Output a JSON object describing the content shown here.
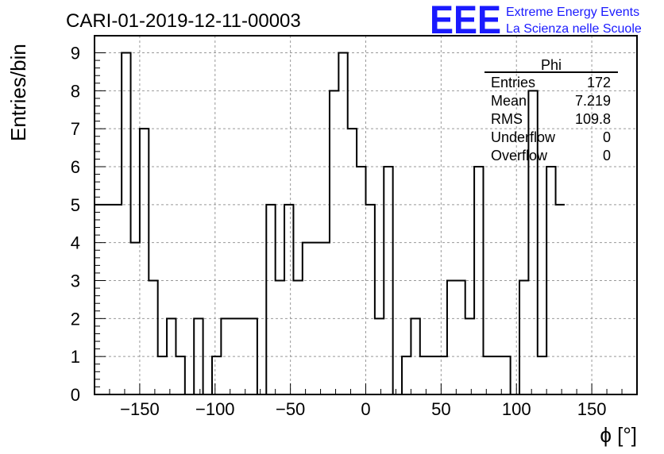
{
  "header": {
    "title": "CARI-01-2019-12-11-00003",
    "logo_mark": "EEE",
    "logo_line1": "Extreme Energy Events",
    "logo_line2": "La Scienza nelle Scuole"
  },
  "stats": {
    "name": "Phi",
    "rows": [
      {
        "label": "Entries",
        "value": "172"
      },
      {
        "label": "Mean",
        "value": "7.219"
      },
      {
        "label": "RMS",
        "value": "109.8"
      },
      {
        "label": "Underflow",
        "value": "0"
      },
      {
        "label": "Overflow",
        "value": "0"
      }
    ]
  },
  "colors": {
    "line": "#000000",
    "grid": "#999999",
    "logo": "#1a1aff"
  },
  "chart_data": {
    "type": "histogram",
    "title": "CARI-01-2019-12-11-00003",
    "xlabel": "ϕ [°]",
    "ylabel": "Entries/bin",
    "xlim": [
      -180,
      180
    ],
    "ylim": [
      0,
      9.45
    ],
    "grid": true,
    "bin_width": 6,
    "bin_edges_start": -180,
    "values": [
      5,
      5,
      5,
      9,
      4,
      7,
      3,
      1,
      2,
      1,
      0,
      2,
      0,
      1,
      2,
      2,
      2,
      2,
      0,
      5,
      3,
      5,
      3,
      4,
      4,
      4,
      8,
      9,
      7,
      6,
      5,
      2,
      6,
      0,
      1,
      2,
      1,
      1,
      1,
      3,
      3,
      2,
      6,
      1,
      1,
      1,
      0,
      3,
      8,
      1,
      6,
      5
    ],
    "xticks": [
      -150,
      -100,
      -50,
      0,
      50,
      100,
      150
    ],
    "xtick_labels": [
      "−150",
      "−100",
      "−50",
      "0",
      "50",
      "100",
      "150"
    ],
    "yticks": [
      0,
      1,
      2,
      3,
      4,
      5,
      6,
      7,
      8,
      9
    ],
    "ytick_labels": [
      "0",
      "1",
      "2",
      "3",
      "4",
      "5",
      "6",
      "7",
      "8",
      "9"
    ]
  }
}
